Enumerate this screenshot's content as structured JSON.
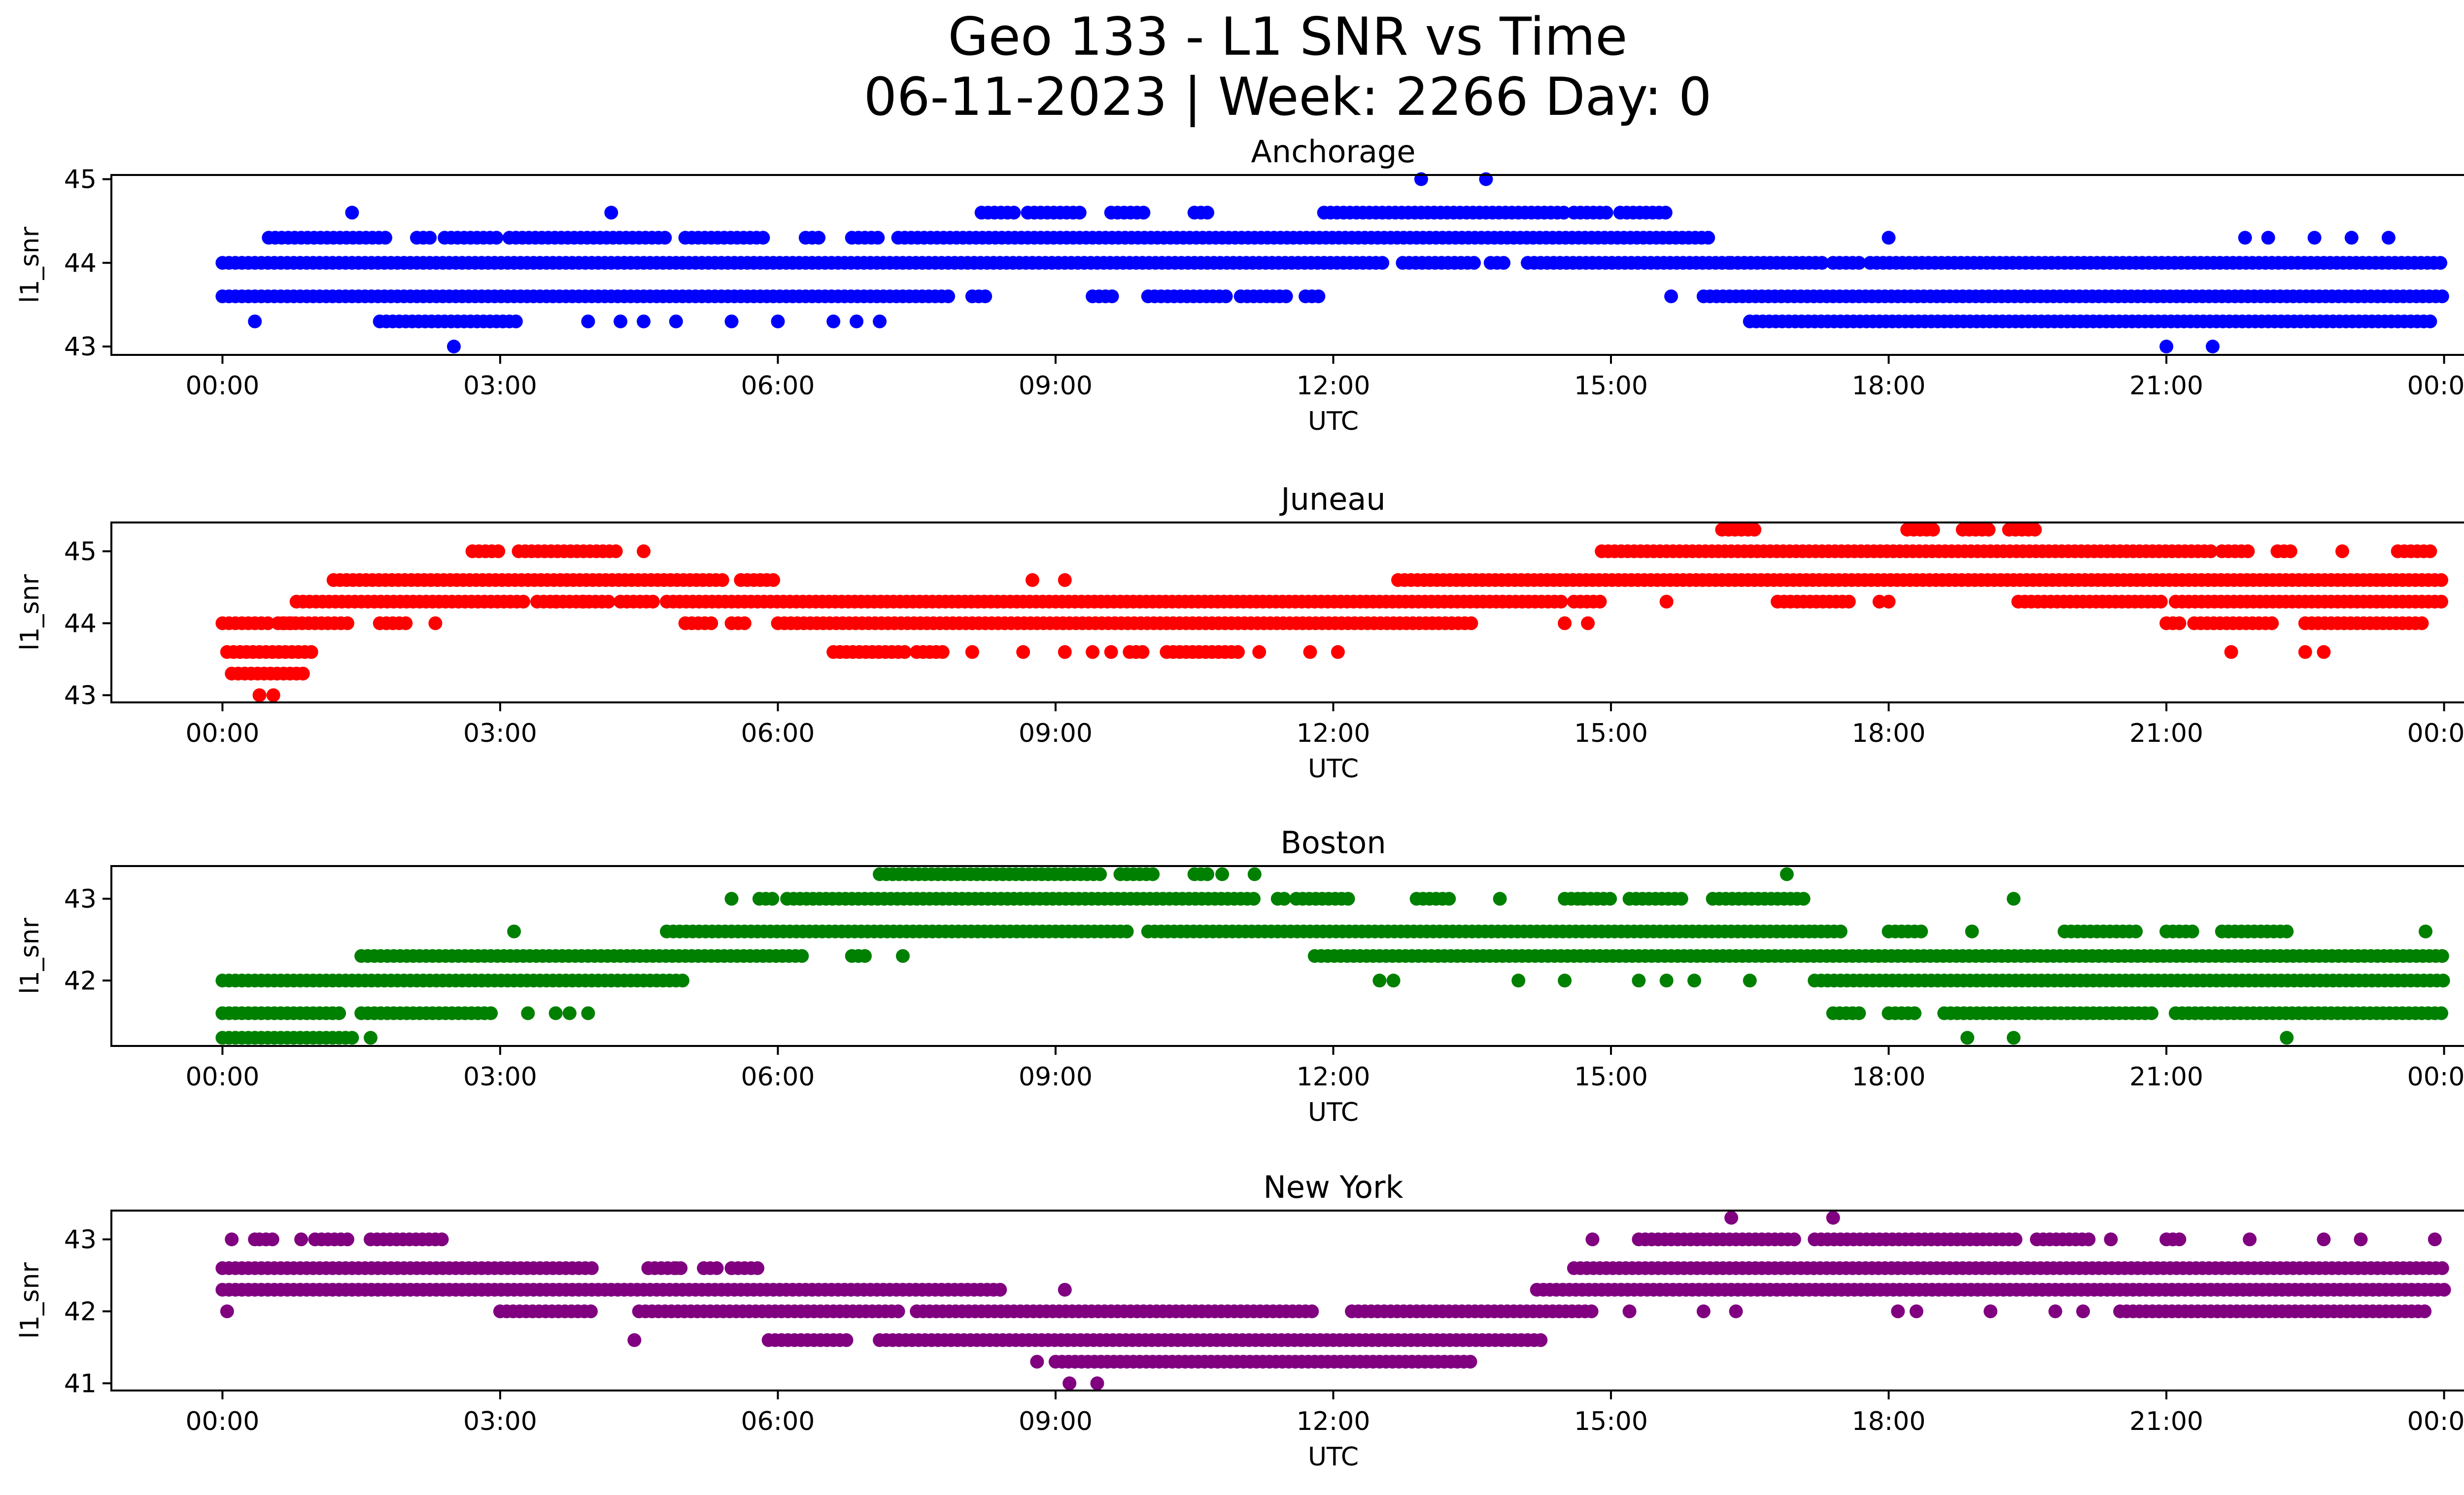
{
  "figure": {
    "title_line1": "Geo 133 - L1 SNR vs Time",
    "title_line2": "06-11-2023 | Week: 2266 Day: 0"
  },
  "chart_data": [
    {
      "type": "scatter",
      "title": "Anchorage",
      "xlabel": "UTC",
      "ylabel": "l1_snr",
      "color": "#0000ff",
      "x_ticks": [
        "00:00",
        "03:00",
        "06:00",
        "09:00",
        "12:00",
        "15:00",
        "18:00",
        "21:00",
        "00:00"
      ],
      "xlim_hours": [
        -1.2,
        25.2
      ],
      "y_ticks": [
        43,
        44,
        45
      ],
      "ylim": [
        42.9,
        45.05
      ],
      "bands": [
        {
          "y": 44.0,
          "ranges": [
            [
              0.0,
              12.55
            ],
            [
              12.75,
              13.55
            ],
            [
              13.7,
              13.9
            ],
            [
              14.1,
              16.3
            ],
            [
              16.3,
              17.3
            ],
            [
              17.4,
              17.7
            ],
            [
              17.8,
              24.0
            ]
          ]
        },
        {
          "y": 43.6,
          "ranges": [
            [
              0.0,
              7.9
            ],
            [
              8.1,
              8.3
            ],
            [
              9.4,
              9.65
            ],
            [
              10.0,
              10.9
            ],
            [
              11.0,
              11.5
            ],
            [
              11.7,
              11.85
            ],
            [
              16.0,
              24.0
            ]
          ]
        },
        {
          "y": 44.3,
          "ranges": [
            [
              0.5,
              1.8
            ],
            [
              2.1,
              2.3
            ],
            [
              2.4,
              3.0
            ],
            [
              3.1,
              4.8
            ],
            [
              5.0,
              5.9
            ],
            [
              6.3,
              6.5
            ],
            [
              6.8,
              7.1
            ],
            [
              7.3,
              16.1
            ]
          ]
        },
        {
          "y": 43.3,
          "ranges": [
            [
              1.7,
              3.2
            ],
            [
              16.5,
              23.9
            ]
          ]
        },
        {
          "y": 44.6,
          "ranges": [
            [
              8.2,
              8.6
            ],
            [
              8.7,
              9.3
            ],
            [
              9.6,
              10.0
            ],
            [
              10.5,
              10.7
            ],
            [
              11.9,
              14.5
            ],
            [
              14.6,
              15.0
            ],
            [
              15.1,
              15.6
            ]
          ]
        }
      ],
      "points": [
        [
          0.35,
          43.3
        ],
        [
          1.4,
          44.6
        ],
        [
          2.5,
          43.0
        ],
        [
          3.95,
          43.3
        ],
        [
          4.2,
          44.6
        ],
        [
          4.3,
          43.3
        ],
        [
          4.55,
          43.3
        ],
        [
          4.9,
          43.3
        ],
        [
          5.5,
          43.3
        ],
        [
          6.0,
          43.3
        ],
        [
          6.6,
          43.3
        ],
        [
          6.85,
          43.3
        ],
        [
          7.1,
          43.3
        ],
        [
          12.95,
          45.0
        ],
        [
          13.65,
          45.0
        ],
        [
          15.65,
          43.6
        ],
        [
          18.0,
          44.3
        ],
        [
          21.0,
          43.0
        ],
        [
          21.5,
          43.0
        ],
        [
          21.85,
          44.3
        ],
        [
          22.1,
          44.3
        ],
        [
          22.6,
          44.3
        ],
        [
          23.0,
          44.3
        ],
        [
          23.4,
          44.3
        ]
      ]
    },
    {
      "type": "scatter",
      "title": "Juneau",
      "xlabel": "UTC",
      "ylabel": "l1_snr",
      "color": "#ff0000",
      "x_ticks": [
        "00:00",
        "03:00",
        "06:00",
        "09:00",
        "12:00",
        "15:00",
        "18:00",
        "21:00",
        "00:00"
      ],
      "xlim_hours": [
        -1.2,
        25.2
      ],
      "y_ticks": [
        43,
        44,
        45
      ],
      "ylim": [
        42.9,
        45.4
      ],
      "bands": [
        {
          "y": 44.0,
          "ranges": [
            [
              0.0,
              0.55
            ],
            [
              0.6,
              0.8
            ],
            [
              0.65,
              1.4
            ],
            [
              1.7,
              2.0
            ],
            [
              5.0,
              5.3
            ],
            [
              5.5,
              5.7
            ],
            [
              6.0,
              13.5
            ],
            [
              21.0,
              21.2
            ],
            [
              21.3,
              22.2
            ],
            [
              22.5,
              23.8
            ]
          ]
        },
        {
          "y": 43.6,
          "ranges": [
            [
              0.05,
              1.0
            ],
            [
              6.6,
              7.4
            ],
            [
              7.5,
              7.8
            ],
            [
              9.8,
              10.0
            ],
            [
              10.2,
              11.0
            ]
          ]
        },
        {
          "y": 43.3,
          "ranges": [
            [
              0.1,
              0.9
            ]
          ]
        },
        {
          "y": 44.3,
          "ranges": [
            [
              0.8,
              3.3
            ],
            [
              3.4,
              4.2
            ],
            [
              4.3,
              4.7
            ],
            [
              4.8,
              14.5
            ],
            [
              14.6,
              14.9
            ],
            [
              16.8,
              17.6
            ],
            [
              19.4,
              21.0
            ],
            [
              21.1,
              24.0
            ]
          ]
        },
        {
          "y": 44.6,
          "ranges": [
            [
              1.2,
              5.4
            ],
            [
              5.6,
              6.0
            ],
            [
              12.7,
              24.0
            ]
          ]
        },
        {
          "y": 45.0,
          "ranges": [
            [
              2.7,
              3.0
            ],
            [
              3.2,
              4.3
            ],
            [
              14.9,
              21.5
            ],
            [
              21.6,
              21.9
            ],
            [
              22.2,
              22.4
            ],
            [
              23.5,
              23.9
            ]
          ]
        },
        {
          "y": 45.3,
          "ranges": [
            [
              16.2,
              16.6
            ],
            [
              18.2,
              18.5
            ],
            [
              18.8,
              19.1
            ],
            [
              19.3,
              19.6
            ]
          ]
        }
      ],
      "points": [
        [
          0.4,
          43.0
        ],
        [
          0.55,
          43.0
        ],
        [
          2.3,
          44.0
        ],
        [
          3.6,
          44.3
        ],
        [
          3.9,
          44.3
        ],
        [
          4.55,
          45.0
        ],
        [
          8.1,
          43.6
        ],
        [
          8.65,
          43.6
        ],
        [
          8.75,
          44.6
        ],
        [
          9.1,
          44.6
        ],
        [
          9.1,
          43.6
        ],
        [
          9.4,
          43.6
        ],
        [
          9.6,
          43.6
        ],
        [
          11.2,
          43.6
        ],
        [
          11.75,
          43.6
        ],
        [
          12.05,
          43.6
        ],
        [
          14.5,
          44.0
        ],
        [
          14.75,
          44.0
        ],
        [
          15.6,
          44.3
        ],
        [
          17.9,
          44.3
        ],
        [
          18.0,
          44.3
        ],
        [
          21.7,
          43.6
        ],
        [
          22.5,
          43.6
        ],
        [
          22.7,
          43.6
        ],
        [
          22.9,
          45.0
        ]
      ]
    },
    {
      "type": "scatter",
      "title": "Boston",
      "xlabel": "UTC",
      "ylabel": "l1_snr",
      "color": "#008000",
      "x_ticks": [
        "00:00",
        "03:00",
        "06:00",
        "09:00",
        "12:00",
        "15:00",
        "18:00",
        "21:00",
        "00:00"
      ],
      "xlim_hours": [
        -1.2,
        25.2
      ],
      "y_ticks": [
        42,
        43
      ],
      "ylim": [
        41.2,
        43.4
      ],
      "bands": [
        {
          "y": 42.0,
          "ranges": [
            [
              0.0,
              5.0
            ],
            [
              17.2,
              24.0
            ]
          ]
        },
        {
          "y": 41.6,
          "ranges": [
            [
              0.0,
              1.3
            ],
            [
              1.5,
              2.9
            ],
            [
              17.4,
              17.7
            ],
            [
              18.0,
              18.3
            ],
            [
              18.6,
              20.9
            ],
            [
              21.1,
              24.0
            ]
          ]
        },
        {
          "y": 41.3,
          "ranges": [
            [
              0.0,
              1.4
            ]
          ]
        },
        {
          "y": 42.3,
          "ranges": [
            [
              1.5,
              6.3
            ],
            [
              6.8,
              7.0
            ],
            [
              11.8,
              24.0
            ]
          ]
        },
        {
          "y": 42.6,
          "ranges": [
            [
              4.8,
              9.8
            ],
            [
              10.0,
              17.2
            ],
            [
              17.2,
              17.5
            ],
            [
              18.0,
              18.4
            ],
            [
              19.9,
              20.7
            ],
            [
              21.0,
              21.3
            ],
            [
              21.6,
              22.3
            ]
          ]
        },
        {
          "y": 43.0,
          "ranges": [
            [
              5.8,
              6.0
            ],
            [
              6.1,
              11.2
            ],
            [
              11.4,
              11.5
            ],
            [
              11.6,
              12.2
            ],
            [
              12.9,
              13.3
            ],
            [
              14.5,
              15.0
            ],
            [
              15.2,
              15.8
            ],
            [
              16.1,
              17.1
            ]
          ]
        },
        {
          "y": 43.3,
          "ranges": [
            [
              7.1,
              9.5
            ],
            [
              9.7,
              10.1
            ],
            [
              10.5,
              10.7
            ]
          ]
        }
      ],
      "points": [
        [
          1.6,
          41.3
        ],
        [
          3.15,
          42.6
        ],
        [
          3.3,
          41.6
        ],
        [
          3.6,
          41.6
        ],
        [
          3.75,
          41.6
        ],
        [
          3.95,
          41.6
        ],
        [
          5.5,
          43.0
        ],
        [
          7.35,
          42.3
        ],
        [
          10.8,
          43.3
        ],
        [
          11.15,
          43.3
        ],
        [
          12.5,
          42.0
        ],
        [
          12.65,
          42.0
        ],
        [
          13.8,
          43.0
        ],
        [
          14.0,
          42.0
        ],
        [
          14.5,
          42.0
        ],
        [
          14.7,
          43.0
        ],
        [
          15.3,
          42.0
        ],
        [
          15.6,
          42.0
        ],
        [
          15.9,
          42.0
        ],
        [
          16.5,
          42.0
        ],
        [
          16.9,
          43.3
        ],
        [
          18.9,
          42.6
        ],
        [
          18.85,
          41.3
        ],
        [
          19.35,
          43.0
        ],
        [
          19.35,
          41.3
        ],
        [
          22.3,
          41.3
        ],
        [
          23.8,
          42.6
        ]
      ]
    },
    {
      "type": "scatter",
      "title": "New York",
      "xlabel": "UTC",
      "ylabel": "l1_snr",
      "color": "#800080",
      "x_ticks": [
        "00:00",
        "03:00",
        "06:00",
        "09:00",
        "12:00",
        "15:00",
        "18:00",
        "21:00",
        "00:00"
      ],
      "xlim_hours": [
        -1.2,
        25.2
      ],
      "y_ticks": [
        41,
        42,
        43
      ],
      "ylim": [
        40.9,
        43.4
      ],
      "bands": [
        {
          "y": 42.6,
          "ranges": [
            [
              0.0,
              4.0
            ],
            [
              4.6,
              5.0
            ],
            [
              5.2,
              5.4
            ],
            [
              5.5,
              5.8
            ],
            [
              14.6,
              24.0
            ]
          ]
        },
        {
          "y": 42.3,
          "ranges": [
            [
              0.0,
              8.4
            ],
            [
              14.2,
              24.0
            ]
          ]
        },
        {
          "y": 43.0,
          "ranges": [
            [
              0.4,
              0.6
            ],
            [
              1.0,
              1.4
            ],
            [
              1.6,
              2.4
            ],
            [
              15.3,
              17.0
            ],
            [
              17.2,
              19.4
            ],
            [
              19.6,
              20.2
            ],
            [
              21.0,
              21.2
            ]
          ]
        },
        {
          "y": 42.0,
          "ranges": [
            [
              3.0,
              4.0
            ],
            [
              4.5,
              7.3
            ],
            [
              7.5,
              11.8
            ],
            [
              12.2,
              14.8
            ],
            [
              20.5,
              23.8
            ]
          ]
        },
        {
          "y": 41.6,
          "ranges": [
            [
              5.9,
              6.8
            ],
            [
              7.1,
              14.3
            ]
          ]
        },
        {
          "y": 41.3,
          "ranges": [
            [
              9.0,
              13.5
            ]
          ]
        }
      ],
      "points": [
        [
          0.05,
          42.0
        ],
        [
          0.1,
          43.0
        ],
        [
          0.35,
          43.0
        ],
        [
          0.85,
          43.0
        ],
        [
          4.45,
          41.6
        ],
        [
          4.6,
          42.6
        ],
        [
          4.9,
          42.6
        ],
        [
          5.2,
          42.6
        ],
        [
          5.5,
          42.6
        ],
        [
          8.8,
          41.3
        ],
        [
          9.1,
          42.3
        ],
        [
          9.15,
          41.0
        ],
        [
          9.45,
          41.0
        ],
        [
          14.8,
          43.0
        ],
        [
          15.2,
          42.0
        ],
        [
          16.0,
          42.0
        ],
        [
          16.3,
          43.3
        ],
        [
          16.35,
          42.0
        ],
        [
          17.4,
          43.3
        ],
        [
          18.1,
          42.0
        ],
        [
          18.3,
          42.0
        ],
        [
          19.1,
          42.0
        ],
        [
          19.8,
          42.0
        ],
        [
          20.1,
          42.0
        ],
        [
          20.4,
          43.0
        ],
        [
          21.9,
          43.0
        ],
        [
          22.7,
          43.0
        ],
        [
          23.1,
          43.0
        ],
        [
          23.9,
          43.0
        ]
      ]
    }
  ]
}
